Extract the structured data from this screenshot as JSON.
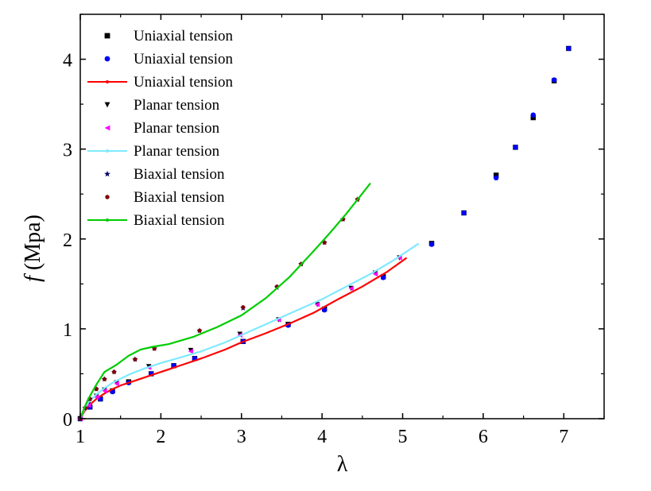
{
  "chart_data": {
    "type": "scatter",
    "xlabel": "λ",
    "ylabel_italic": "f",
    "ylabel_rest": " (Mpa)",
    "xlim": [
      1,
      7.5
    ],
    "ylim": [
      0,
      4.5
    ],
    "xticks": [
      1,
      2,
      3,
      4,
      5,
      6,
      7
    ],
    "yticks": [
      0,
      1,
      2,
      3,
      4
    ],
    "grid": false,
    "legend_position": "top-left",
    "series": [
      {
        "name": "Uniaxial tension",
        "kind": "marker",
        "marker": "square",
        "color": "#000000",
        "x": [
          1.0,
          1.12,
          1.25,
          1.4,
          1.6,
          1.88,
          2.16,
          2.42,
          3.02,
          3.58,
          4.03,
          4.76,
          5.36,
          5.76,
          6.16,
          6.4,
          6.62,
          6.88,
          7.06
        ],
        "y": [
          0.0,
          0.13,
          0.22,
          0.31,
          0.41,
          0.5,
          0.59,
          0.67,
          0.86,
          1.05,
          1.22,
          1.58,
          1.95,
          2.29,
          2.71,
          3.02,
          3.35,
          3.76,
          4.12
        ]
      },
      {
        "name": "Uniaxial tension",
        "kind": "marker",
        "marker": "circle",
        "color": "#0000ff",
        "x": [
          1.0,
          1.12,
          1.25,
          1.4,
          1.6,
          1.88,
          2.16,
          2.42,
          3.02,
          3.58,
          4.03,
          4.76,
          5.36,
          5.76,
          6.16,
          6.4,
          6.62,
          6.88,
          7.06
        ],
        "y": [
          0.0,
          0.13,
          0.22,
          0.3,
          0.4,
          0.5,
          0.59,
          0.67,
          0.86,
          1.04,
          1.21,
          1.57,
          1.94,
          2.29,
          2.68,
          3.02,
          3.38,
          3.77,
          4.12
        ]
      },
      {
        "name": "Uniaxial tension",
        "kind": "line",
        "color": "#ff0000",
        "x": [
          1.0,
          1.05,
          1.1,
          1.2,
          1.3,
          1.4,
          1.5,
          1.7,
          1.9,
          2.1,
          2.3,
          2.5,
          2.8,
          3.0,
          3.3,
          3.6,
          3.9,
          4.2,
          4.5,
          4.8,
          5.05
        ],
        "y": [
          0.0,
          0.08,
          0.14,
          0.22,
          0.28,
          0.33,
          0.37,
          0.43,
          0.49,
          0.55,
          0.61,
          0.67,
          0.77,
          0.85,
          0.95,
          1.06,
          1.18,
          1.33,
          1.47,
          1.63,
          1.79
        ]
      },
      {
        "name": "Planar tension",
        "kind": "marker",
        "marker": "triangle-down",
        "color": "#000000",
        "x": [
          1.0,
          1.1,
          1.2,
          1.3,
          1.45,
          1.85,
          2.37,
          2.98,
          3.46,
          3.94,
          4.36,
          4.66,
          4.96
        ],
        "y": [
          0.0,
          0.16,
          0.25,
          0.32,
          0.4,
          0.58,
          0.76,
          0.94,
          1.1,
          1.27,
          1.45,
          1.62,
          1.79
        ]
      },
      {
        "name": "Planar tension",
        "kind": "marker",
        "marker": "triangle-left",
        "color": "#ff00ff",
        "x": [
          1.0,
          1.1,
          1.2,
          1.3,
          1.45,
          1.85,
          2.37,
          2.98,
          3.46,
          3.94,
          4.36,
          4.66,
          4.96
        ],
        "y": [
          0.0,
          0.15,
          0.24,
          0.31,
          0.39,
          0.57,
          0.75,
          0.93,
          1.1,
          1.27,
          1.45,
          1.61,
          1.79
        ]
      },
      {
        "name": "Planar tension",
        "kind": "line",
        "color": "#7fe9ff",
        "x": [
          1.0,
          1.05,
          1.1,
          1.2,
          1.3,
          1.4,
          1.6,
          1.8,
          2.0,
          2.2,
          2.5,
          2.8,
          3.1,
          3.4,
          3.7,
          4.0,
          4.3,
          4.6,
          4.9,
          5.2
        ],
        "y": [
          0.0,
          0.1,
          0.18,
          0.27,
          0.34,
          0.4,
          0.49,
          0.56,
          0.62,
          0.67,
          0.75,
          0.85,
          0.97,
          1.09,
          1.21,
          1.33,
          1.47,
          1.61,
          1.77,
          1.95
        ]
      },
      {
        "name": "Biaxial tension",
        "kind": "marker",
        "marker": "star",
        "color": "#000066",
        "x": [
          1.0,
          1.06,
          1.12,
          1.2,
          1.3,
          1.42,
          1.68,
          1.92,
          2.48,
          3.02,
          3.44,
          3.74,
          4.03,
          4.26,
          4.44
        ],
        "y": [
          0.0,
          0.12,
          0.22,
          0.33,
          0.44,
          0.52,
          0.66,
          0.78,
          0.98,
          1.23,
          1.46,
          1.72,
          1.96,
          2.22,
          2.44
        ]
      },
      {
        "name": "Biaxial tension",
        "kind": "marker",
        "marker": "circle-small",
        "color": "#800000",
        "x": [
          1.0,
          1.06,
          1.12,
          1.2,
          1.3,
          1.42,
          1.68,
          1.92,
          2.48,
          3.02,
          3.44,
          3.74,
          4.03,
          4.26,
          4.44
        ],
        "y": [
          0.0,
          0.12,
          0.22,
          0.33,
          0.44,
          0.52,
          0.66,
          0.78,
          0.98,
          1.24,
          1.47,
          1.72,
          1.96,
          2.22,
          2.44
        ]
      },
      {
        "name": "Biaxial tension",
        "kind": "line",
        "color": "#00cc00",
        "x": [
          1.0,
          1.05,
          1.1,
          1.2,
          1.3,
          1.45,
          1.6,
          1.75,
          1.9,
          2.1,
          2.4,
          2.7,
          3.0,
          3.3,
          3.6,
          3.9,
          4.1,
          4.3,
          4.45,
          4.6
        ],
        "y": [
          0.0,
          0.12,
          0.22,
          0.38,
          0.52,
          0.6,
          0.7,
          0.77,
          0.8,
          0.83,
          0.91,
          1.02,
          1.15,
          1.34,
          1.58,
          1.87,
          2.07,
          2.28,
          2.45,
          2.62
        ]
      }
    ]
  }
}
